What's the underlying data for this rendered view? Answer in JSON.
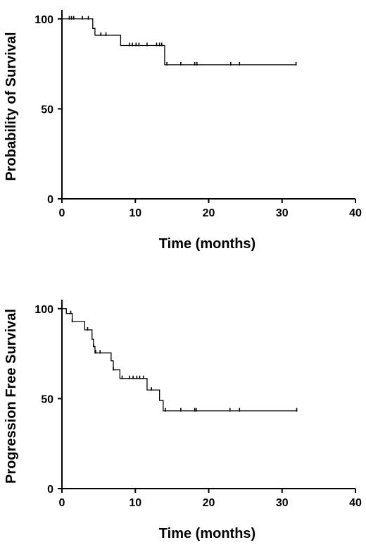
{
  "chart_data": [
    {
      "type": "line",
      "subtype": "kaplan-meier-step",
      "xlabel": "Time (months)",
      "ylabel": "Probability of Survival",
      "xlim": [
        0,
        40
      ],
      "ylim": [
        0,
        105
      ],
      "xticks": [
        0,
        10,
        20,
        30,
        40
      ],
      "yticks": [
        0,
        50,
        100
      ],
      "grid": false,
      "steps": [
        [
          0,
          100
        ],
        [
          4.2,
          94.7
        ],
        [
          4.5,
          90.9
        ],
        [
          8.0,
          85.2
        ],
        [
          14.0,
          74.5
        ]
      ],
      "end_x": 32,
      "censored": [
        1.0,
        1.3,
        1.6,
        2.8,
        3.6,
        5.3,
        6.0,
        9.2,
        9.6,
        10.1,
        10.5,
        11.6,
        12.9,
        13.3,
        13.6,
        14.3,
        16.2,
        18.1,
        18.4,
        23.0,
        24.2,
        31.9
      ]
    },
    {
      "type": "line",
      "subtype": "kaplan-meier-step",
      "xlabel": "Time (months)",
      "ylabel": "Progression Free Survival",
      "xlim": [
        0,
        40
      ],
      "ylim": [
        0,
        105
      ],
      "xticks": [
        0,
        10,
        20,
        30,
        40
      ],
      "yticks": [
        0,
        50,
        100
      ],
      "grid": false,
      "steps": [
        [
          0,
          100
        ],
        [
          0.6,
          97.3
        ],
        [
          1.4,
          92.8
        ],
        [
          3.1,
          88.2
        ],
        [
          4.1,
          83.0
        ],
        [
          4.3,
          79.0
        ],
        [
          4.5,
          75.4
        ],
        [
          6.7,
          71.0
        ],
        [
          7.0,
          66.0
        ],
        [
          7.9,
          61.2
        ],
        [
          11.6,
          54.8
        ],
        [
          13.3,
          49.0
        ],
        [
          13.8,
          43.2
        ]
      ],
      "end_x": 32,
      "censored": [
        1.2,
        1.4,
        3.5,
        4.3,
        4.6,
        5.2,
        7.0,
        8.2,
        9.2,
        9.7,
        10.2,
        10.6,
        11.1,
        12.2,
        14.1,
        16.2,
        18.1,
        18.3,
        22.9,
        24.2,
        32.0
      ]
    }
  ]
}
